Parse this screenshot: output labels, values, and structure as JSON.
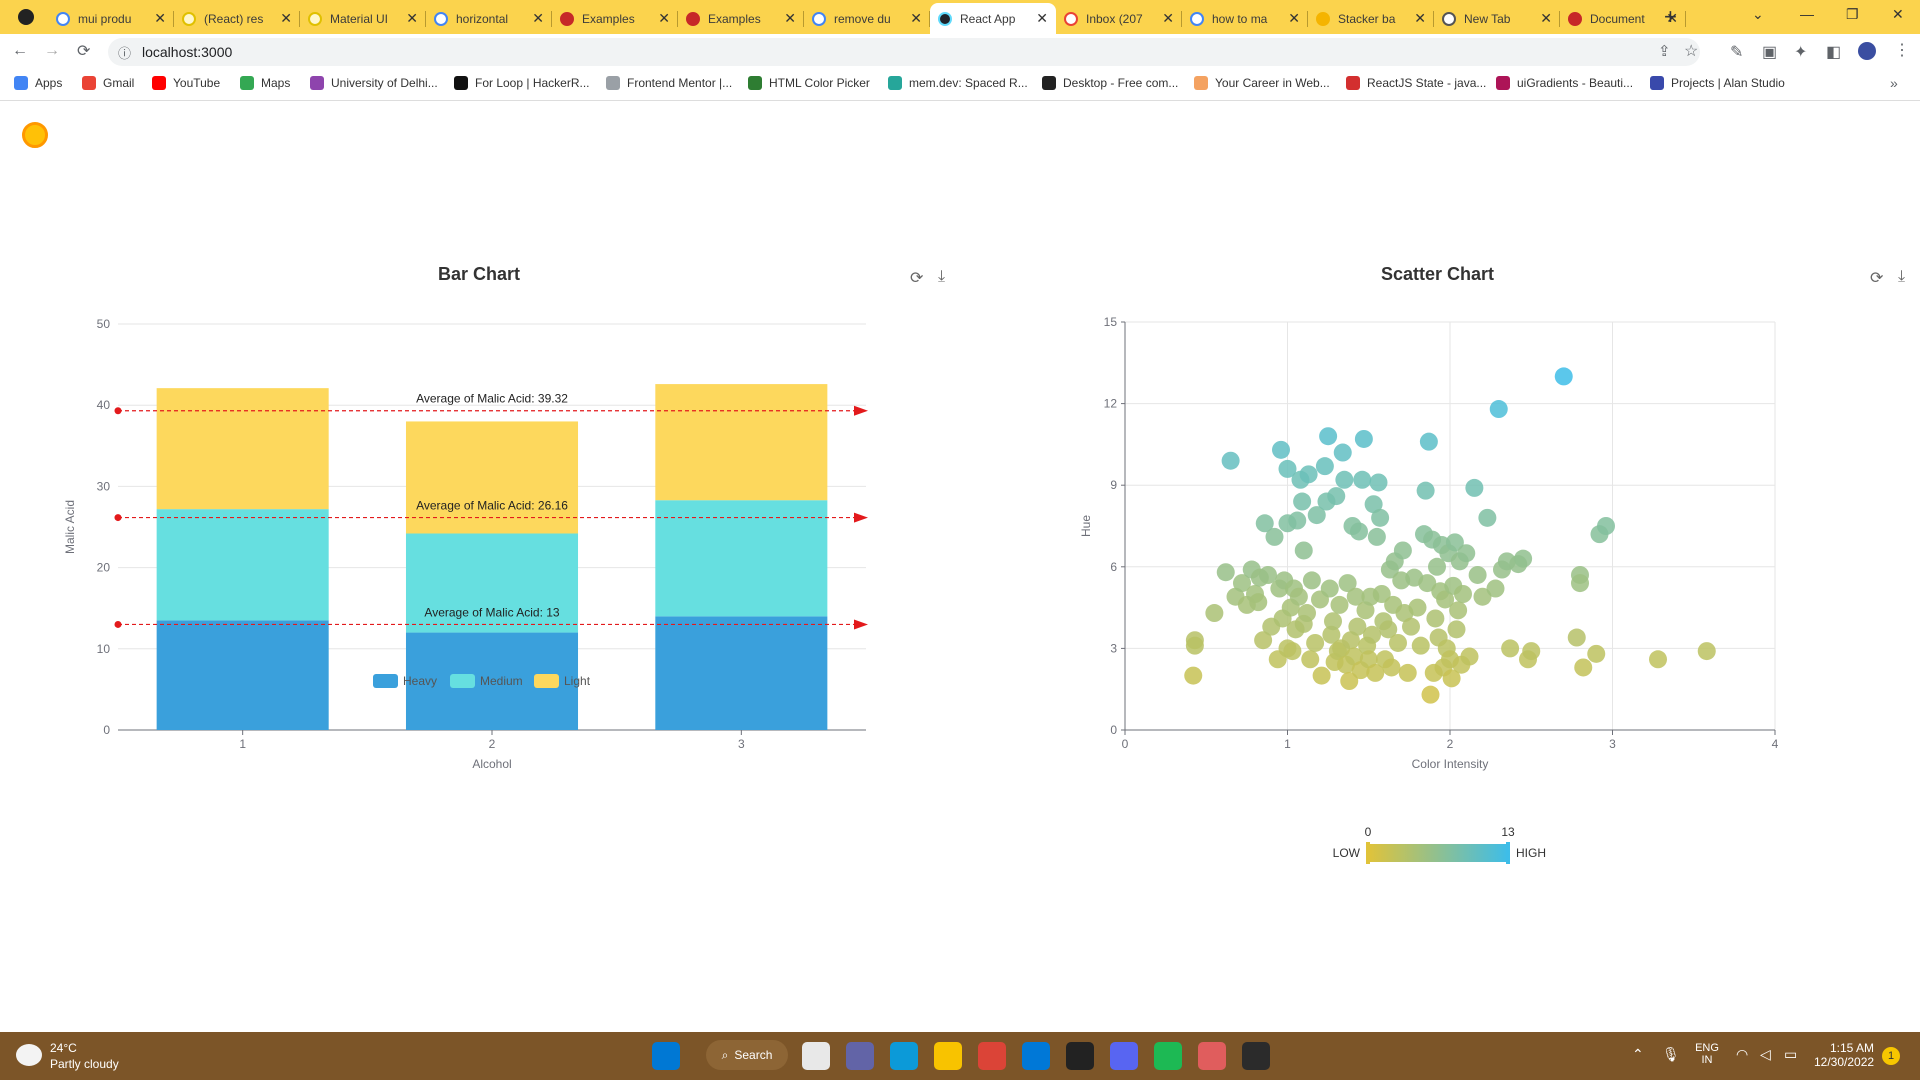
{
  "browser": {
    "tabs": [
      {
        "title": "mui produ",
        "fav": "#ffffff",
        "ring": "#4285f4"
      },
      {
        "title": "(React) res",
        "fav": "#fff7cc",
        "ring": "#e0c000"
      },
      {
        "title": "Material UI",
        "fav": "#fff7cc",
        "ring": "#e0c000"
      },
      {
        "title": "horizontal",
        "fav": "#ffffff",
        "ring": "#4285f4"
      },
      {
        "title": "Examples",
        "fav": "#c62828",
        "ring": "#c62828"
      },
      {
        "title": "Examples",
        "fav": "#c62828",
        "ring": "#c62828"
      },
      {
        "title": "remove du",
        "fav": "#ffffff",
        "ring": "#4285f4"
      },
      {
        "title": "React App",
        "fav": "#20232a",
        "ring": "#61dafb",
        "active": true
      },
      {
        "title": "Inbox (207",
        "fav": "#ffffff",
        "ring": "#ea4335"
      },
      {
        "title": "how to ma",
        "fav": "#ffffff",
        "ring": "#4285f4"
      },
      {
        "title": "Stacker ba",
        "fav": "#f5b400",
        "ring": "#f5b400"
      },
      {
        "title": "New Tab",
        "fav": "#ffffff",
        "ring": "#555555"
      },
      {
        "title": "Document",
        "fav": "#c62828",
        "ring": "#c62828"
      }
    ],
    "close_glyph": "✕",
    "new_tab_glyph": "+",
    "url": "localhost:3000",
    "bookmarks": [
      {
        "label": "Apps",
        "color": "#4285f4"
      },
      {
        "label": "Gmail",
        "color": "#ea4335"
      },
      {
        "label": "YouTube",
        "color": "#ff0000"
      },
      {
        "label": "Maps",
        "color": "#34a853"
      },
      {
        "label": "University of Delhi...",
        "color": "#8e44ad"
      },
      {
        "label": "For Loop | HackerR...",
        "color": "#111111"
      },
      {
        "label": "Frontend Mentor |...",
        "color": "#9aa0a6"
      },
      {
        "label": "HTML Color Picker",
        "color": "#2e7d32"
      },
      {
        "label": "mem.dev: Spaced R...",
        "color": "#26a69a"
      },
      {
        "label": "Desktop - Free com...",
        "color": "#222222"
      },
      {
        "label": "Your Career in Web...",
        "color": "#f4a261"
      },
      {
        "label": "ReactJS State - java...",
        "color": "#d32f2f"
      },
      {
        "label": "uiGradients - Beauti...",
        "color": "#ad1457"
      },
      {
        "label": "Projects | Alan Studio",
        "color": "#3949ab"
      }
    ]
  },
  "bar_panel": {
    "title": "Bar Chart",
    "refresh_icon": "⟳",
    "download_icon": "⤓"
  },
  "scatter_panel": {
    "title": "Scatter Chart",
    "refresh_icon": "⟳",
    "download_icon": "⤓"
  },
  "chart_data": [
    {
      "type": "bar",
      "title": "Bar Chart",
      "xlabel": "Alcohol",
      "ylabel": "Malic Acid",
      "ylim": [
        0,
        50
      ],
      "yticks": [
        0,
        10,
        20,
        30,
        40,
        50
      ],
      "categories": [
        "1",
        "2",
        "3"
      ],
      "stacked": true,
      "series": [
        {
          "name": "Heavy",
          "color": "#3aa0dc",
          "values": [
            13.5,
            12,
            14
          ]
        },
        {
          "name": "Medium",
          "color": "#66dfe0",
          "values": [
            13.7,
            12.2,
            14.3
          ]
        },
        {
          "name": "Light",
          "color": "#fdd85d",
          "values": [
            14.9,
            13.8,
            14.3
          ]
        }
      ],
      "mark_lines": [
        {
          "label": "Average of Malic Acid: 39.32",
          "value": 39.32
        },
        {
          "label": "Average of Malic Acid: 26.16",
          "value": 26.16
        },
        {
          "label": "Average of Malic Acid: 13",
          "value": 13
        }
      ],
      "mark_line_color": "#e31a1c",
      "legend_position": "center"
    },
    {
      "type": "scatter",
      "title": "Scatter Chart",
      "xlabel": "Color Intensity",
      "ylabel": "Hue",
      "xlim": [
        0,
        4
      ],
      "ylim": [
        0,
        15
      ],
      "xticks": [
        0,
        1,
        2,
        3,
        4
      ],
      "yticks": [
        0,
        3,
        6,
        9,
        12,
        15
      ],
      "visual_map": {
        "min": 0,
        "max": 13,
        "low_label": "LOW",
        "high_label": "HIGH",
        "low_color": "#e0c33a",
        "high_color": "#3ebde8"
      },
      "points": [
        [
          0.43,
          3.3
        ],
        [
          0.43,
          3.1
        ],
        [
          0.42,
          2.0
        ],
        [
          0.55,
          4.3
        ],
        [
          0.62,
          5.8
        ],
        [
          0.65,
          9.9
        ],
        [
          0.68,
          4.9
        ],
        [
          0.72,
          5.4
        ],
        [
          0.75,
          4.6
        ],
        [
          0.78,
          5.9
        ],
        [
          0.8,
          5.0
        ],
        [
          0.82,
          4.7
        ],
        [
          0.83,
          5.6
        ],
        [
          0.85,
          3.3
        ],
        [
          0.86,
          7.6
        ],
        [
          0.88,
          5.7
        ],
        [
          0.9,
          3.8
        ],
        [
          0.92,
          7.1
        ],
        [
          0.94,
          2.6
        ],
        [
          0.95,
          5.2
        ],
        [
          0.96,
          10.3
        ],
        [
          0.97,
          4.1
        ],
        [
          0.98,
          5.5
        ],
        [
          1.0,
          9.6
        ],
        [
          1.0,
          7.6
        ],
        [
          1.0,
          3.0
        ],
        [
          1.02,
          4.5
        ],
        [
          1.03,
          2.9
        ],
        [
          1.04,
          5.2
        ],
        [
          1.05,
          3.7
        ],
        [
          1.06,
          7.7
        ],
        [
          1.07,
          4.9
        ],
        [
          1.08,
          9.2
        ],
        [
          1.09,
          8.4
        ],
        [
          1.1,
          6.6
        ],
        [
          1.1,
          3.9
        ],
        [
          1.12,
          4.3
        ],
        [
          1.13,
          9.4
        ],
        [
          1.14,
          2.6
        ],
        [
          1.15,
          5.5
        ],
        [
          1.17,
          3.2
        ],
        [
          1.18,
          7.9
        ],
        [
          1.2,
          4.8
        ],
        [
          1.21,
          2.0
        ],
        [
          1.23,
          9.7
        ],
        [
          1.24,
          8.4
        ],
        [
          1.25,
          10.8
        ],
        [
          1.26,
          5.2
        ],
        [
          1.27,
          3.5
        ],
        [
          1.28,
          4.0
        ],
        [
          1.29,
          2.5
        ],
        [
          1.3,
          8.6
        ],
        [
          1.31,
          2.9
        ],
        [
          1.32,
          4.6
        ],
        [
          1.33,
          3.0
        ],
        [
          1.34,
          10.2
        ],
        [
          1.35,
          9.2
        ],
        [
          1.36,
          2.4
        ],
        [
          1.37,
          5.4
        ],
        [
          1.38,
          1.8
        ],
        [
          1.39,
          3.3
        ],
        [
          1.4,
          7.5
        ],
        [
          1.41,
          2.7
        ],
        [
          1.42,
          4.9
        ],
        [
          1.43,
          3.8
        ],
        [
          1.44,
          7.3
        ],
        [
          1.45,
          2.2
        ],
        [
          1.46,
          9.2
        ],
        [
          1.47,
          10.7
        ],
        [
          1.48,
          4.4
        ],
        [
          1.49,
          3.1
        ],
        [
          1.5,
          2.6
        ],
        [
          1.51,
          4.9
        ],
        [
          1.52,
          3.5
        ],
        [
          1.53,
          8.3
        ],
        [
          1.54,
          2.1
        ],
        [
          1.55,
          7.1
        ],
        [
          1.56,
          9.1
        ],
        [
          1.57,
          7.8
        ],
        [
          1.58,
          5.0
        ],
        [
          1.59,
          4.0
        ],
        [
          1.6,
          2.6
        ],
        [
          1.62,
          3.7
        ],
        [
          1.63,
          5.9
        ],
        [
          1.64,
          2.3
        ],
        [
          1.65,
          4.6
        ],
        [
          1.66,
          6.2
        ],
        [
          1.68,
          3.2
        ],
        [
          1.7,
          5.5
        ],
        [
          1.71,
          6.6
        ],
        [
          1.72,
          4.3
        ],
        [
          1.74,
          2.1
        ],
        [
          1.76,
          3.8
        ],
        [
          1.78,
          5.6
        ],
        [
          1.8,
          4.5
        ],
        [
          1.82,
          3.1
        ],
        [
          1.84,
          7.2
        ],
        [
          1.85,
          8.8
        ],
        [
          1.86,
          5.4
        ],
        [
          1.87,
          10.6
        ],
        [
          1.88,
          1.3
        ],
        [
          1.89,
          7.0
        ],
        [
          1.9,
          2.1
        ],
        [
          1.91,
          4.1
        ],
        [
          1.92,
          6.0
        ],
        [
          1.93,
          3.4
        ],
        [
          1.94,
          5.1
        ],
        [
          1.95,
          6.8
        ],
        [
          1.96,
          2.3
        ],
        [
          1.97,
          4.8
        ],
        [
          1.98,
          3.0
        ],
        [
          1.99,
          6.5
        ],
        [
          2.0,
          2.6
        ],
        [
          2.01,
          1.9
        ],
        [
          2.02,
          5.3
        ],
        [
          2.03,
          6.9
        ],
        [
          2.04,
          3.7
        ],
        [
          2.05,
          4.4
        ],
        [
          2.06,
          6.2
        ],
        [
          2.07,
          2.4
        ],
        [
          2.08,
          5.0
        ],
        [
          2.1,
          6.5
        ],
        [
          2.12,
          2.7
        ],
        [
          2.15,
          8.9
        ],
        [
          2.17,
          5.7
        ],
        [
          2.2,
          4.9
        ],
        [
          2.23,
          7.8
        ],
        [
          2.28,
          5.2
        ],
        [
          2.3,
          11.8
        ],
        [
          2.32,
          5.9
        ],
        [
          2.35,
          6.2
        ],
        [
          2.37,
          3.0
        ],
        [
          2.42,
          6.1
        ],
        [
          2.45,
          6.3
        ],
        [
          2.48,
          2.6
        ],
        [
          2.5,
          2.9
        ],
        [
          2.7,
          13.0
        ],
        [
          2.78,
          3.4
        ],
        [
          2.8,
          5.7
        ],
        [
          2.8,
          5.4
        ],
        [
          2.82,
          2.3
        ],
        [
          2.9,
          2.8
        ],
        [
          2.92,
          7.2
        ],
        [
          2.96,
          7.5
        ],
        [
          3.28,
          2.6
        ],
        [
          3.58,
          2.9
        ]
      ]
    }
  ],
  "taskbar": {
    "temperature": "24°C",
    "weather": "Partly cloudy",
    "search_label": "Search",
    "lang_top": "ENG",
    "lang_bottom": "IN",
    "time": "1:15 AM",
    "date": "12/30/2022",
    "notification_count": "1",
    "apps": [
      {
        "name": "start",
        "color": "#0078d4"
      },
      {
        "name": "files",
        "color": "#e8e8e8"
      },
      {
        "name": "meet",
        "color": "#6264a7"
      },
      {
        "name": "edge",
        "color": "#0c9ad8"
      },
      {
        "name": "explorer",
        "color": "#f8c300"
      },
      {
        "name": "chrome",
        "color": "#db4437"
      },
      {
        "name": "vscode",
        "color": "#0078d7"
      },
      {
        "name": "box3d",
        "color": "#222222"
      },
      {
        "name": "discord",
        "color": "#5865f2"
      },
      {
        "name": "spotify",
        "color": "#1db954"
      },
      {
        "name": "snip",
        "color": "#e05d5d"
      },
      {
        "name": "terminal",
        "color": "#2b2b2b"
      }
    ]
  }
}
